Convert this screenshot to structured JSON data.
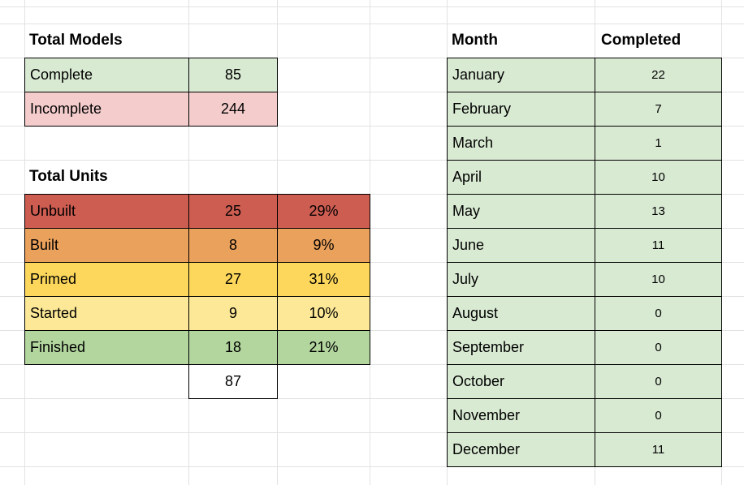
{
  "colors": {
    "gridline": "#e2e2e2",
    "table_border": "#000000",
    "month_row": "#d9ead3"
  },
  "total_models": {
    "title": "Total Models",
    "rows": [
      {
        "label": "Complete",
        "value": "85",
        "color": "#d9ead3"
      },
      {
        "label": "Incomplete",
        "value": "244",
        "color": "#f4cccc"
      }
    ]
  },
  "total_units": {
    "title": "Total Units",
    "rows": [
      {
        "label": "Unbuilt",
        "count": "25",
        "percent": "29%",
        "color": "#cd5c51"
      },
      {
        "label": "Built",
        "count": "8",
        "percent": "9%",
        "color": "#eaa15c"
      },
      {
        "label": "Primed",
        "count": "27",
        "percent": "31%",
        "color": "#fcd75b"
      },
      {
        "label": "Started",
        "count": "9",
        "percent": "10%",
        "color": "#fce896"
      },
      {
        "label": "Finished",
        "count": "18",
        "percent": "21%",
        "color": "#b2d69e"
      }
    ],
    "total": "87"
  },
  "monthly": {
    "header_month": "Month",
    "header_completed": "Completed",
    "rows": [
      {
        "month": "January",
        "completed": "22"
      },
      {
        "month": "February",
        "completed": "7"
      },
      {
        "month": "March",
        "completed": "1"
      },
      {
        "month": "April",
        "completed": "10"
      },
      {
        "month": "May",
        "completed": "13"
      },
      {
        "month": "June",
        "completed": "11"
      },
      {
        "month": "July",
        "completed": "10"
      },
      {
        "month": "August",
        "completed": "0"
      },
      {
        "month": "September",
        "completed": "0"
      },
      {
        "month": "October",
        "completed": "0"
      },
      {
        "month": "November",
        "completed": "0"
      },
      {
        "month": "December",
        "completed": "11"
      }
    ]
  }
}
